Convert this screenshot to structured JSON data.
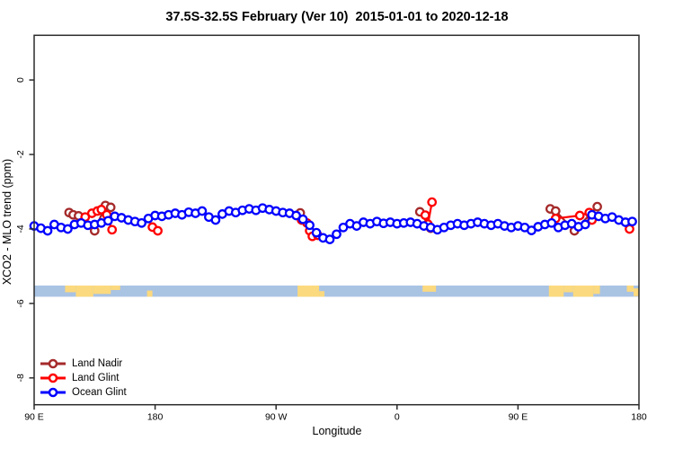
{
  "chart_data": {
    "type": "scatter-line",
    "title": "37.5S-32.5S February (Ver 10)  2015-01-01 to 2020-12-18",
    "xlabel": "Longitude",
    "ylabel": "XCO2 - MLO trend (ppm)",
    "x_axis": {
      "range_deg": [
        0,
        450
      ],
      "note": "degrees eastward from 90E, axis wraps 90E-180-90W-0-90E-180",
      "ticks_deg": [
        0,
        90,
        180,
        270,
        360,
        450
      ],
      "tick_labels": [
        "90 E",
        "180",
        "90 W",
        "0",
        "90 E",
        "180"
      ]
    },
    "y_axis": {
      "range": [
        -8.72,
        1.2
      ],
      "ticks": [
        0,
        -2,
        -4,
        -6,
        -8
      ],
      "tick_labels": [
        "0",
        "-2",
        "-4",
        "-6",
        "-8"
      ]
    },
    "grid": false,
    "frame_color": "#2b2b2b",
    "map_band": {
      "description": "latitude strip map 37.5S-32.5S: ocean with land patches",
      "value_top": -5.52,
      "value_bottom": -5.82,
      "ocean_color": "#A9C3E3",
      "land_color": "#FBD97E",
      "land_patches": [
        {
          "from": 23,
          "to": 31,
          "top": 0,
          "bottom": 0.6
        },
        {
          "from": 31,
          "to": 44,
          "top": 0,
          "bottom": 1
        },
        {
          "from": 44,
          "to": 57,
          "top": 0,
          "bottom": 0.75
        },
        {
          "from": 57,
          "to": 64,
          "top": 0,
          "bottom": 0.4
        },
        {
          "from": 84,
          "to": 88,
          "top": 0.45,
          "bottom": 1
        },
        {
          "from": 196,
          "to": 212,
          "top": 0,
          "bottom": 1
        },
        {
          "from": 212,
          "to": 216,
          "top": 0.5,
          "bottom": 1
        },
        {
          "from": 289,
          "to": 299,
          "top": 0,
          "bottom": 0.55
        },
        {
          "from": 383,
          "to": 394,
          "top": 0,
          "bottom": 1
        },
        {
          "from": 394,
          "to": 401,
          "top": 0,
          "bottom": 0.6
        },
        {
          "from": 401,
          "to": 416,
          "top": 0,
          "bottom": 1
        },
        {
          "from": 416,
          "to": 421,
          "top": 0,
          "bottom": 0.75
        },
        {
          "from": 441,
          "to": 446,
          "top": 0,
          "bottom": 0.55
        },
        {
          "from": 446,
          "to": 450,
          "top": 0.25,
          "bottom": 0.95
        }
      ]
    },
    "series": [
      {
        "name": "Land Nadir",
        "color": "#A52A2A",
        "marker": "open-circle",
        "clusters": [
          [
            [
              26,
              -3.56
            ],
            [
              29,
              -3.62
            ],
            [
              33,
              -3.65
            ],
            [
              45,
              -4.05
            ],
            [
              53,
              -3.37
            ],
            [
              57,
              -3.42
            ]
          ],
          [
            [
              198,
              -3.57
            ]
          ],
          [
            [
              287,
              -3.54
            ],
            [
              295,
              -3.98
            ]
          ],
          [
            [
              384,
              -3.46
            ],
            [
              388,
              -3.52
            ],
            [
              402,
              -4.05
            ],
            [
              419,
              -3.4
            ]
          ]
        ]
      },
      {
        "name": "Land Glint",
        "color": "#FF0000",
        "marker": "open-circle",
        "clusters": [
          [
            [
              38,
              -3.68
            ],
            [
              43,
              -3.58
            ],
            [
              47,
              -3.52
            ],
            [
              50,
              -3.48
            ],
            [
              54,
              -3.62
            ],
            [
              58,
              -4.02
            ]
          ],
          [
            [
              88,
              -3.95
            ],
            [
              92,
              -4.05
            ]
          ],
          [
            [
              199,
              -3.76
            ],
            [
              203,
              -3.84
            ],
            [
              205,
              -4.05
            ],
            [
              207,
              -4.2
            ],
            [
              211,
              -4.17
            ]
          ],
          [
            [
              291,
              -3.63
            ],
            [
              293,
              -3.87
            ],
            [
              296,
              -3.28
            ]
          ],
          [
            [
              388,
              -3.72
            ],
            [
              406,
              -3.64
            ],
            [
              413,
              -3.56
            ],
            [
              415,
              -3.76
            ]
          ],
          [
            [
              443,
              -4.0
            ]
          ]
        ]
      },
      {
        "name": "Ocean Glint",
        "color": "#0000FF",
        "marker": "open-circle",
        "clusters": [
          [
            [
              0,
              -3.92
            ],
            [
              5,
              -3.98
            ],
            [
              10,
              -4.05
            ],
            [
              15,
              -3.88
            ],
            [
              20,
              -3.96
            ],
            [
              25,
              -4.0
            ],
            [
              30,
              -3.88
            ],
            [
              35,
              -3.84
            ],
            [
              40,
              -3.9
            ],
            [
              45,
              -3.88
            ],
            [
              50,
              -3.84
            ],
            [
              55,
              -3.78
            ],
            [
              60,
              -3.66
            ],
            [
              65,
              -3.7
            ],
            [
              70,
              -3.76
            ],
            [
              75,
              -3.8
            ],
            [
              80,
              -3.84
            ],
            [
              85,
              -3.72
            ],
            [
              90,
              -3.64
            ],
            [
              95,
              -3.66
            ],
            [
              100,
              -3.62
            ],
            [
              105,
              -3.58
            ],
            [
              110,
              -3.62
            ],
            [
              115,
              -3.55
            ],
            [
              120,
              -3.58
            ],
            [
              125,
              -3.52
            ],
            [
              130,
              -3.68
            ],
            [
              135,
              -3.76
            ],
            [
              140,
              -3.6
            ],
            [
              145,
              -3.52
            ],
            [
              150,
              -3.56
            ],
            [
              155,
              -3.5
            ],
            [
              160,
              -3.46
            ],
            [
              165,
              -3.5
            ],
            [
              170,
              -3.44
            ],
            [
              175,
              -3.48
            ],
            [
              180,
              -3.52
            ],
            [
              185,
              -3.56
            ],
            [
              190,
              -3.58
            ],
            [
              195,
              -3.64
            ],
            [
              200,
              -3.74
            ],
            [
              205,
              -3.9
            ],
            [
              210,
              -4.1
            ],
            [
              215,
              -4.24
            ],
            [
              220,
              -4.28
            ],
            [
              225,
              -4.14
            ],
            [
              230,
              -3.96
            ],
            [
              235,
              -3.86
            ],
            [
              240,
              -3.92
            ],
            [
              245,
              -3.82
            ],
            [
              250,
              -3.86
            ],
            [
              255,
              -3.8
            ],
            [
              260,
              -3.85
            ],
            [
              265,
              -3.82
            ],
            [
              270,
              -3.86
            ],
            [
              275,
              -3.84
            ],
            [
              280,
              -3.82
            ],
            [
              285,
              -3.86
            ],
            [
              290,
              -3.92
            ],
            [
              295,
              -3.96
            ],
            [
              300,
              -4.02
            ],
            [
              305,
              -3.96
            ],
            [
              310,
              -3.9
            ],
            [
              315,
              -3.86
            ],
            [
              320,
              -3.9
            ],
            [
              325,
              -3.86
            ],
            [
              330,
              -3.82
            ],
            [
              335,
              -3.86
            ],
            [
              340,
              -3.9
            ],
            [
              345,
              -3.86
            ],
            [
              350,
              -3.92
            ],
            [
              355,
              -3.96
            ],
            [
              360,
              -3.92
            ],
            [
              365,
              -3.96
            ],
            [
              370,
              -4.04
            ],
            [
              375,
              -3.94
            ],
            [
              380,
              -3.88
            ],
            [
              385,
              -3.84
            ],
            [
              390,
              -3.96
            ],
            [
              395,
              -3.9
            ],
            [
              400,
              -3.86
            ],
            [
              405,
              -3.94
            ],
            [
              410,
              -3.88
            ],
            [
              415,
              -3.62
            ],
            [
              420,
              -3.66
            ],
            [
              425,
              -3.72
            ],
            [
              430,
              -3.68
            ],
            [
              435,
              -3.76
            ],
            [
              440,
              -3.82
            ],
            [
              445,
              -3.8
            ]
          ]
        ]
      }
    ],
    "legend": {
      "position": "bottom-left",
      "items": [
        "Land Nadir",
        "Land Glint",
        "Ocean Glint"
      ]
    }
  }
}
